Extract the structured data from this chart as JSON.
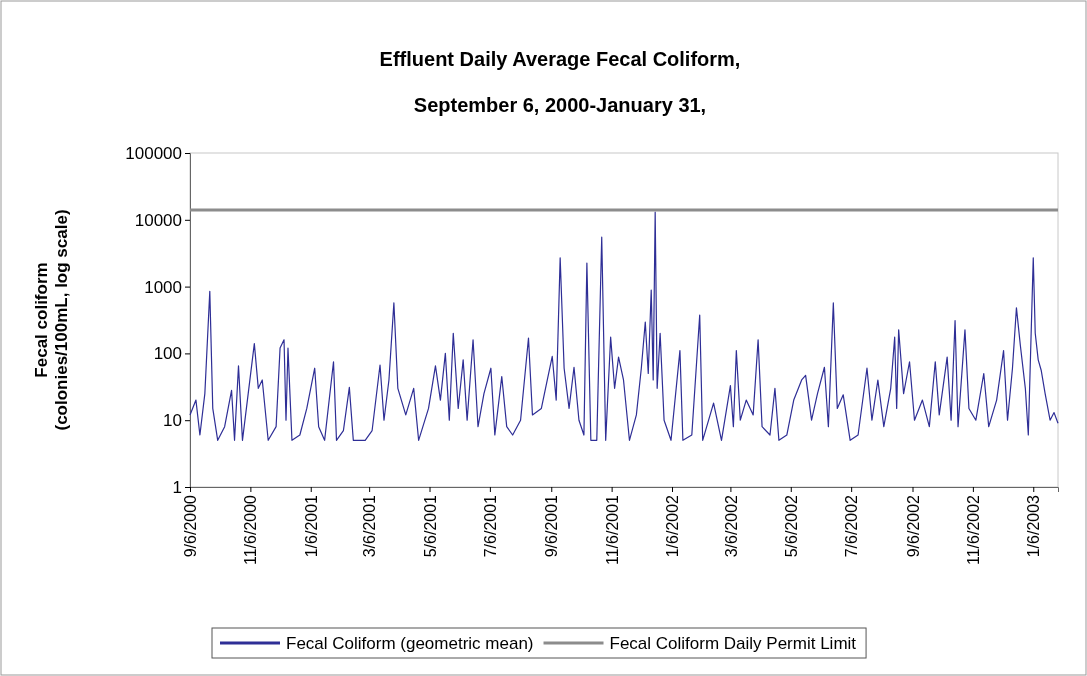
{
  "chart_data": {
    "type": "line",
    "title": "Effluent Daily Average Fecal Coliform,",
    "subtitle": "September 6, 2000-January 31,",
    "ylabel": "Fecal coliform (colonies/100mL, log scale)",
    "log": true,
    "ylim": [
      1,
      100000
    ],
    "yticks": [
      1,
      10,
      100,
      1000,
      10000,
      100000
    ],
    "xlim": [
      "2000-09-06",
      "2003-01-31"
    ],
    "xticks": [
      {
        "value": "2000-09-06",
        "label": "9/6/2000"
      },
      {
        "value": "2000-11-06",
        "label": "11/6/2000"
      },
      {
        "value": "2001-01-06",
        "label": "1/6/2001"
      },
      {
        "value": "2001-03-06",
        "label": "3/6/2001"
      },
      {
        "value": "2001-05-06",
        "label": "5/6/2001"
      },
      {
        "value": "2001-07-06",
        "label": "7/6/2001"
      },
      {
        "value": "2001-09-06",
        "label": "9/6/2001"
      },
      {
        "value": "2001-11-06",
        "label": "11/6/2001"
      },
      {
        "value": "2002-01-06",
        "label": "1/6/2002"
      },
      {
        "value": "2002-03-06",
        "label": "3/6/2002"
      },
      {
        "value": "2002-05-06",
        "label": "5/6/2002"
      },
      {
        "value": "2002-07-06",
        "label": "7/6/2002"
      },
      {
        "value": "2002-09-06",
        "label": "9/6/2002"
      },
      {
        "value": "2002-11-06",
        "label": "11/6/2002"
      },
      {
        "value": "2003-01-06",
        "label": "1/6/2003"
      }
    ],
    "legend": "bottom",
    "grid": false,
    "series": [
      {
        "name": "Fecal Coliform (geometric mean)",
        "color": "#2e2e96",
        "x": [
          "2000-09-06",
          "2000-09-12",
          "2000-09-16",
          "2000-09-21",
          "2000-09-26",
          "2000-09-29",
          "2000-10-04",
          "2000-10-11",
          "2000-10-18",
          "2000-10-21",
          "2000-10-25",
          "2000-10-29",
          "2000-11-10",
          "2000-11-14",
          "2000-11-18",
          "2000-11-24",
          "2000-12-02",
          "2000-12-06",
          "2000-12-10",
          "2000-12-12",
          "2000-12-14",
          "2000-12-18",
          "2000-12-26",
          "2001-01-02",
          "2001-01-10",
          "2001-01-14",
          "2001-01-20",
          "2001-01-29",
          "2001-02-01",
          "2001-02-08",
          "2001-02-14",
          "2001-02-18",
          "2001-03-02",
          "2001-03-09",
          "2001-03-17",
          "2001-03-21",
          "2001-03-26",
          "2001-03-31",
          "2001-04-04",
          "2001-04-12",
          "2001-04-20",
          "2001-04-25",
          "2001-05-05",
          "2001-05-12",
          "2001-05-17",
          "2001-05-22",
          "2001-05-26",
          "2001-05-30",
          "2001-06-04",
          "2001-06-09",
          "2001-06-13",
          "2001-06-19",
          "2001-06-24",
          "2001-06-30",
          "2001-07-07",
          "2001-07-11",
          "2001-07-18",
          "2001-07-23",
          "2001-07-29",
          "2001-08-06",
          "2001-08-14",
          "2001-08-18",
          "2001-08-27",
          "2001-09-02",
          "2001-09-07",
          "2001-09-11",
          "2001-09-15",
          "2001-09-19",
          "2001-09-24",
          "2001-09-29",
          "2001-10-04",
          "2001-10-09",
          "2001-10-12",
          "2001-10-16",
          "2001-10-22",
          "2001-10-27",
          "2001-10-31",
          "2001-11-05",
          "2001-11-09",
          "2001-11-13",
          "2001-11-18",
          "2001-11-24",
          "2001-12-01",
          "2001-12-06",
          "2001-12-10",
          "2001-12-13",
          "2001-12-16",
          "2001-12-18",
          "2001-12-20",
          "2001-12-22",
          "2001-12-25",
          "2001-12-29",
          "2002-01-05",
          "2002-01-14",
          "2002-01-17",
          "2002-01-26",
          "2002-02-03",
          "2002-02-06",
          "2002-02-17",
          "2002-02-25",
          "2002-03-06",
          "2002-03-09",
          "2002-03-12",
          "2002-03-16",
          "2002-03-22",
          "2002-03-29",
          "2002-04-03",
          "2002-04-07",
          "2002-04-15",
          "2002-04-20",
          "2002-04-24",
          "2002-05-02",
          "2002-05-09",
          "2002-05-17",
          "2002-05-21",
          "2002-05-27",
          "2002-06-02",
          "2002-06-09",
          "2002-06-13",
          "2002-06-18",
          "2002-06-22",
          "2002-06-28",
          "2002-07-05",
          "2002-07-13",
          "2002-07-22",
          "2002-07-27",
          "2002-08-02",
          "2002-08-08",
          "2002-08-15",
          "2002-08-19",
          "2002-08-21",
          "2002-08-23",
          "2002-08-28",
          "2002-09-03",
          "2002-09-08",
          "2002-09-16",
          "2002-09-23",
          "2002-09-29",
          "2002-10-03",
          "2002-10-11",
          "2002-10-15",
          "2002-10-19",
          "2002-10-22",
          "2002-10-29",
          "2002-11-02",
          "2002-11-09",
          "2002-11-17",
          "2002-11-22",
          "2002-11-30",
          "2002-12-07",
          "2002-12-11",
          "2002-12-16",
          "2002-12-20",
          "2002-12-24",
          "2002-12-29",
          "2003-01-01",
          "2003-01-06",
          "2003-01-08",
          "2003-01-11",
          "2003-01-14",
          "2003-01-18",
          "2003-01-23",
          "2003-01-27",
          "2003-01-31"
        ],
        "values": [
          12,
          20,
          6,
          25,
          850,
          15,
          5,
          8,
          28,
          5,
          65,
          5,
          140,
          30,
          40,
          5,
          8,
          120,
          160,
          10,
          120,
          5,
          6,
          15,
          60,
          8,
          5,
          75,
          5,
          7,
          31,
          5,
          5,
          7,
          67,
          10,
          40,
          570,
          30,
          12,
          30,
          5,
          15,
          65,
          20,
          100,
          10,
          200,
          15,
          80,
          10,
          160,
          8,
          25,
          60,
          6,
          45,
          8,
          6,
          10,
          170,
          12,
          15,
          40,
          90,
          20,
          2700,
          60,
          15,
          62,
          10,
          6,
          2250,
          5,
          5,
          5500,
          5,
          175,
          30,
          88,
          40,
          5,
          12,
          60,
          295,
          50,
          890,
          40,
          13000,
          30,
          200,
          10,
          5,
          110,
          5,
          6,
          375,
          5,
          18,
          5,
          33,
          8,
          110,
          10,
          20,
          12,
          160,
          8,
          6,
          30,
          5,
          6,
          20,
          40,
          47,
          10,
          25,
          62,
          8,
          570,
          15,
          24,
          5,
          6,
          60,
          10,
          40,
          8,
          30,
          175,
          15,
          225,
          25,
          75,
          10,
          20,
          8,
          75,
          12,
          88,
          10,
          310,
          8,
          225,
          15,
          10,
          50,
          8,
          20,
          110,
          10,
          60,
          480,
          130,
          30,
          6,
          2700,
          200,
          80,
          56,
          25,
          10,
          13,
          9
        ]
      },
      {
        "name": "Fecal Coliform Daily Permit Limit",
        "color": "#8c8c8c",
        "x": [
          "2000-09-06",
          "2003-01-31"
        ],
        "values": [
          14000,
          14000
        ]
      }
    ]
  }
}
